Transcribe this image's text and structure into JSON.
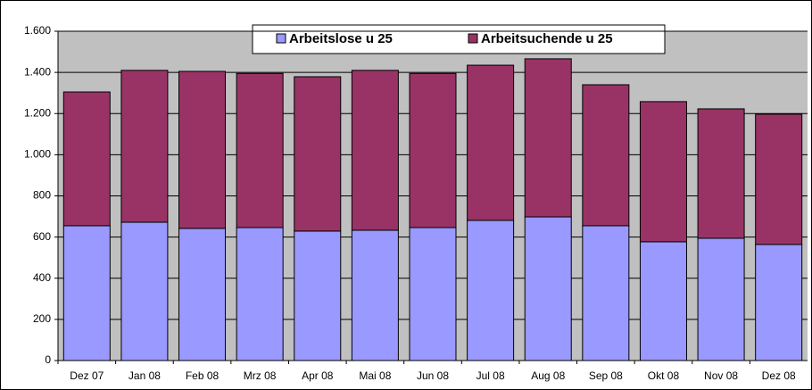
{
  "chart_data": {
    "type": "stacked_bar",
    "categories": [
      "Dez 07",
      "Jan 08",
      "Feb 08",
      "Mrz 08",
      "Apr 08",
      "Mai 08",
      "Jun 08",
      "Jul 08",
      "Aug 08",
      "Sep 08",
      "Okt 08",
      "Nov 08",
      "Dez 08"
    ],
    "series": [
      {
        "name": "Arbeitslose u 25",
        "color": "#9999ff",
        "values": [
          655,
          672,
          642,
          646,
          629,
          633,
          646,
          681,
          698,
          655,
          577,
          594,
          564
        ]
      },
      {
        "name": "Arbeitsuchende u 25",
        "color": "#993366",
        "values": [
          650,
          738,
          763,
          749,
          750,
          777,
          749,
          754,
          768,
          685,
          681,
          629,
          633
        ]
      }
    ],
    "ylim": [
      0,
      1600
    ],
    "yticks": [
      0,
      200,
      400,
      600,
      800,
      {
        "value": 1000,
        "label": "1.000"
      },
      {
        "value": 1200,
        "label": "1.200"
      },
      {
        "value": 1400,
        "label": "1.400"
      },
      {
        "value": 1600,
        "label": "1.600"
      }
    ],
    "grid": true,
    "legend": "top"
  }
}
